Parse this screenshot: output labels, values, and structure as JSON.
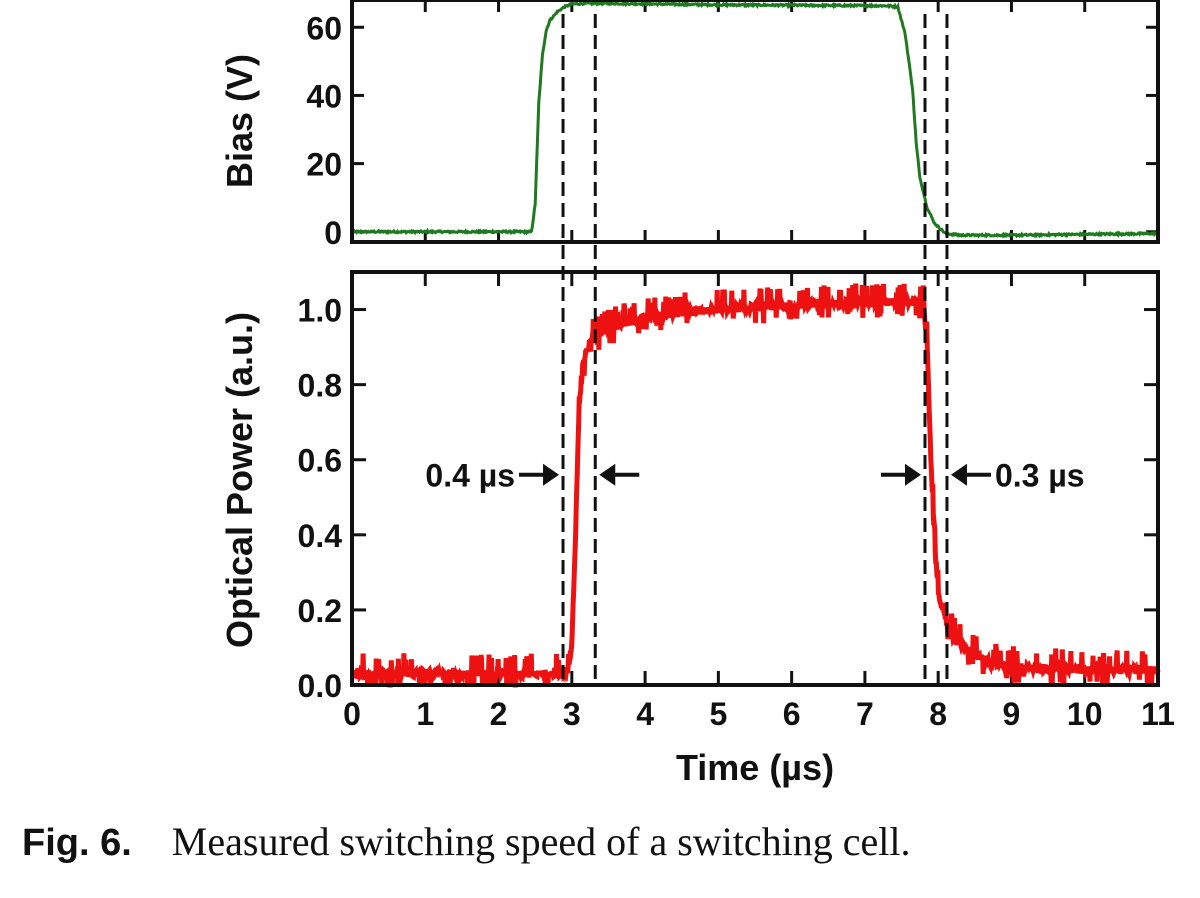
{
  "chart_data": [
    {
      "id": "bias",
      "type": "line",
      "ylabel": "Bias (V)",
      "xlim": [
        0,
        11
      ],
      "ylim": [
        -3,
        68
      ],
      "yticks": [
        0,
        20,
        40,
        60
      ],
      "series": [
        {
          "color": "#1f7a1f",
          "x": [
            0,
            2.45,
            2.5,
            2.55,
            2.6,
            2.65,
            2.7,
            2.8,
            2.9,
            3.0,
            3.2,
            3.5,
            5,
            7.3,
            7.45,
            7.55,
            7.65,
            7.7,
            7.75,
            7.85,
            7.95,
            8.05,
            8.1,
            8.3,
            9,
            11
          ],
          "y": [
            0,
            0,
            8,
            38,
            52,
            59,
            62,
            64.5,
            66,
            66.8,
            67,
            67,
            66.6,
            66.3,
            66,
            58,
            42,
            26,
            16,
            7,
            2.5,
            0.5,
            -0.5,
            -1,
            -1,
            -0.5
          ]
        }
      ]
    },
    {
      "id": "optical",
      "type": "line",
      "ylabel": "Optical Power (a.u.)",
      "xlabel": "Time (µs)",
      "xlim": [
        0,
        11
      ],
      "ylim": [
        0,
        1.1
      ],
      "xticks": [
        0,
        1,
        2,
        3,
        4,
        5,
        6,
        7,
        8,
        9,
        10,
        11
      ],
      "yticks": [
        0.0,
        0.2,
        0.4,
        0.6,
        0.8,
        1.0
      ],
      "series": [
        {
          "color": "#ee1111",
          "x": [
            0,
            2.8,
            2.95,
            3.0,
            3.05,
            3.1,
            3.15,
            3.2,
            3.3,
            3.5,
            4.0,
            5.0,
            6.0,
            7.0,
            7.8,
            7.85,
            7.9,
            7.95,
            8.0,
            8.1,
            8.2,
            8.4,
            8.7,
            9.0,
            10.0,
            11.0
          ],
          "y": [
            0.03,
            0.03,
            0.04,
            0.1,
            0.4,
            0.75,
            0.85,
            0.89,
            0.93,
            0.95,
            0.98,
            1.0,
            1.01,
            1.02,
            1.02,
            0.9,
            0.6,
            0.38,
            0.25,
            0.17,
            0.13,
            0.09,
            0.06,
            0.05,
            0.04,
            0.04
          ]
        }
      ],
      "annotations": [
        {
          "text": "0.4 µs",
          "between": [
            2.88,
            3.32
          ],
          "at_y": 0.56
        },
        {
          "text": "0.3 µs",
          "between": [
            7.82,
            8.12
          ],
          "at_y": 0.56
        }
      ]
    }
  ],
  "caption": {
    "label": "Fig. 6.",
    "text": "Measured switching speed of a switching cell."
  }
}
